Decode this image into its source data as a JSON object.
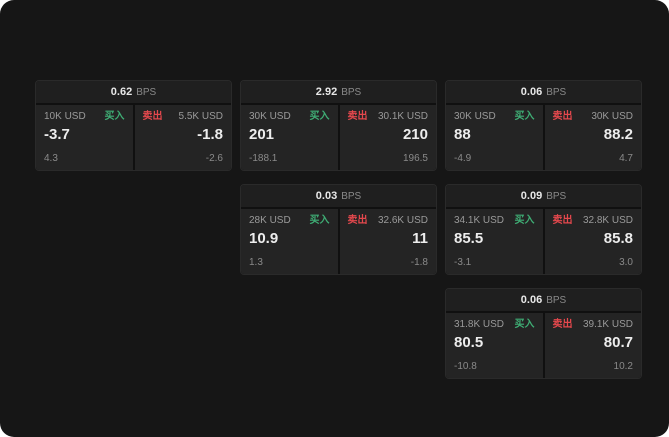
{
  "labels": {
    "bps": "BPS",
    "buy": "买入",
    "sell": "卖出"
  },
  "colors": {
    "buy": "#3fae75",
    "sell": "#e5484d"
  },
  "cards": [
    {
      "bps": "0.62",
      "col": 1,
      "row": 1,
      "buy": {
        "amount": "10K USD",
        "price": "-3.7",
        "sub": "4.3"
      },
      "sell": {
        "amount": "5.5K USD",
        "price": "-1.8",
        "sub": "-2.6"
      }
    },
    {
      "bps": "2.92",
      "col": 2,
      "row": 1,
      "buy": {
        "amount": "30K USD",
        "price": "201",
        "sub": "-188.1"
      },
      "sell": {
        "amount": "30.1K USD",
        "price": "210",
        "sub": "196.5"
      }
    },
    {
      "bps": "0.06",
      "col": 3,
      "row": 1,
      "buy": {
        "amount": "30K USD",
        "price": "88",
        "sub": "-4.9"
      },
      "sell": {
        "amount": "30K USD",
        "price": "88.2",
        "sub": "4.7"
      }
    },
    {
      "bps": "0.03",
      "col": 2,
      "row": 2,
      "buy": {
        "amount": "28K USD",
        "price": "10.9",
        "sub": "1.3"
      },
      "sell": {
        "amount": "32.6K USD",
        "price": "11",
        "sub": "-1.8"
      }
    },
    {
      "bps": "0.09",
      "col": 3,
      "row": 2,
      "buy": {
        "amount": "34.1K USD",
        "price": "85.5",
        "sub": "-3.1"
      },
      "sell": {
        "amount": "32.8K USD",
        "price": "85.8",
        "sub": "3.0"
      }
    },
    {
      "bps": "0.06",
      "col": 3,
      "row": 3,
      "buy": {
        "amount": "31.8K USD",
        "price": "80.5",
        "sub": "-10.8"
      },
      "sell": {
        "amount": "39.1K USD",
        "price": "80.7",
        "sub": "10.2"
      }
    }
  ]
}
